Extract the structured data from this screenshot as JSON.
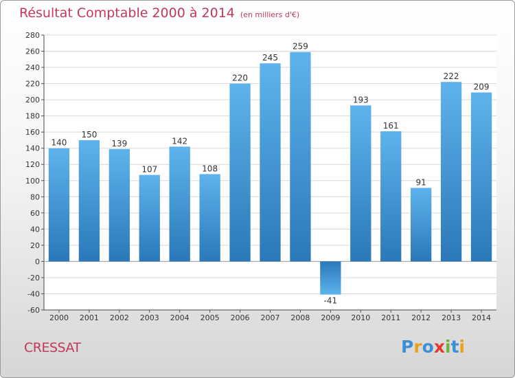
{
  "header": {
    "title": "Résultat Comptable 2000 à 2014",
    "subtitle": "(en milliers d'€)"
  },
  "footer": {
    "commune": "CRESSAT",
    "logo_text": "Proxiti",
    "logo_letters": [
      {
        "ch": "P",
        "color": "#3b8fd4"
      },
      {
        "ch": "r",
        "color": "#e8a21a"
      },
      {
        "ch": "o",
        "color": "#3b8fd4"
      },
      {
        "ch": "x",
        "color": "#e33a2e"
      },
      {
        "ch": "i",
        "color": "#6cb33e"
      },
      {
        "ch": "t",
        "color": "#3b8fd4"
      },
      {
        "ch": "i",
        "color": "#e8a21a"
      }
    ]
  },
  "chart_data": {
    "type": "bar",
    "categories": [
      "2000",
      "2001",
      "2002",
      "2003",
      "2004",
      "2005",
      "2006",
      "2007",
      "2008",
      "2009",
      "2010",
      "2011",
      "2012",
      "2013",
      "2014"
    ],
    "values": [
      140,
      150,
      139,
      107,
      142,
      108,
      220,
      245,
      259,
      -41,
      193,
      161,
      91,
      222,
      209
    ],
    "data_labels": [
      "140",
      "150",
      "139",
      "107",
      "142",
      "108",
      "220",
      "245",
      "259",
      "-41",
      "193",
      "161",
      "91",
      "222",
      "209"
    ],
    "ylim": [
      -60,
      280
    ],
    "yticks": [
      -60,
      -40,
      -20,
      0,
      20,
      40,
      60,
      80,
      100,
      120,
      140,
      160,
      180,
      200,
      220,
      240,
      260,
      280
    ],
    "ytick_labels": [
      "-60",
      "-40",
      "-20",
      "0",
      "20",
      "40",
      "60",
      "80",
      "100",
      "120",
      "140",
      "160",
      "180",
      "200",
      "220",
      "240",
      "260",
      "280"
    ],
    "grid": true,
    "bar_color_light": "#5fb3ec",
    "bar_color_dark": "#2a78b8",
    "grid_color": "#d8d8d8"
  }
}
